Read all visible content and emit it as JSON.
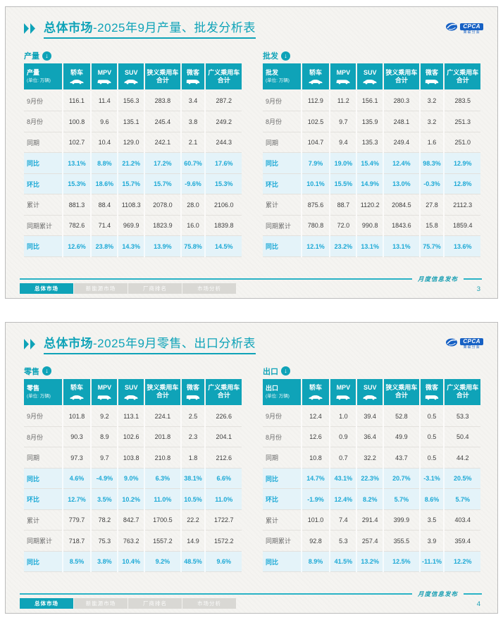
{
  "colors": {
    "teal": "#0fa3b8",
    "percent_text": "#1ca9d6",
    "percent_row_bg": "#e4f3f9",
    "slide_bg": "#f5f4f1",
    "logo_blue": "#1761c4",
    "tab_inactive_bg": "#d9d8d4"
  },
  "logo": {
    "text": "CPCA",
    "subtext": "乘联分会"
  },
  "footer": {
    "note": "月度信息发布",
    "tabs": [
      {
        "label": "总体市场",
        "active": true
      },
      {
        "label": "新能源市场",
        "active": false
      },
      {
        "label": "厂商排名",
        "active": false
      },
      {
        "label": "市场分析",
        "active": false
      }
    ]
  },
  "unit_label": "(单位: 万辆)",
  "columns": [
    {
      "label": "轿车",
      "icon": "sedan-icon"
    },
    {
      "label": "MPV",
      "icon": "mpv-icon"
    },
    {
      "label": "SUV",
      "icon": "suv-icon"
    },
    {
      "label": "狭义乘用车",
      "label2": "合计"
    },
    {
      "label": "微客",
      "icon": "microvan-icon"
    },
    {
      "label": "广义乘用车",
      "label2": "合计"
    }
  ],
  "slides": [
    {
      "title_primary": "总体市场",
      "title_secondary": "-2025年9月产量、批发分析表",
      "page_number": "3",
      "tables": [
        {
          "section": "产量",
          "rows": [
            {
              "label": "9月份",
              "type": "value",
              "values": [
                "116.1",
                "11.4",
                "156.3",
                "283.8",
                "3.4",
                "287.2"
              ]
            },
            {
              "label": "8月份",
              "type": "value",
              "values": [
                "100.8",
                "9.6",
                "135.1",
                "245.4",
                "3.8",
                "249.2"
              ]
            },
            {
              "label": "同期",
              "type": "value",
              "values": [
                "102.7",
                "10.4",
                "129.0",
                "242.1",
                "2.1",
                "244.3"
              ]
            },
            {
              "label": "同比",
              "type": "percent",
              "values": [
                "13.1%",
                "8.8%",
                "21.2%",
                "17.2%",
                "60.7%",
                "17.6%"
              ]
            },
            {
              "label": "环比",
              "type": "percent",
              "values": [
                "15.3%",
                "18.6%",
                "15.7%",
                "15.7%",
                "-9.6%",
                "15.3%"
              ]
            },
            {
              "label": "累计",
              "type": "value",
              "values": [
                "881.3",
                "88.4",
                "1108.3",
                "2078.0",
                "28.0",
                "2106.0"
              ]
            },
            {
              "label": "同期累计",
              "type": "value",
              "values": [
                "782.6",
                "71.4",
                "969.9",
                "1823.9",
                "16.0",
                "1839.8"
              ]
            },
            {
              "label": "同比",
              "type": "percent",
              "values": [
                "12.6%",
                "23.8%",
                "14.3%",
                "13.9%",
                "75.8%",
                "14.5%"
              ]
            }
          ]
        },
        {
          "section": "批发",
          "rows": [
            {
              "label": "9月份",
              "type": "value",
              "values": [
                "112.9",
                "11.2",
                "156.1",
                "280.3",
                "3.2",
                "283.5"
              ]
            },
            {
              "label": "8月份",
              "type": "value",
              "values": [
                "102.5",
                "9.7",
                "135.9",
                "248.1",
                "3.2",
                "251.3"
              ]
            },
            {
              "label": "同期",
              "type": "value",
              "values": [
                "104.7",
                "9.4",
                "135.3",
                "249.4",
                "1.6",
                "251.0"
              ]
            },
            {
              "label": "同比",
              "type": "percent",
              "values": [
                "7.9%",
                "19.0%",
                "15.4%",
                "12.4%",
                "98.3%",
                "12.9%"
              ]
            },
            {
              "label": "环比",
              "type": "percent",
              "values": [
                "10.1%",
                "15.5%",
                "14.9%",
                "13.0%",
                "-0.3%",
                "12.8%"
              ]
            },
            {
              "label": "累计",
              "type": "value",
              "values": [
                "875.6",
                "88.7",
                "1120.2",
                "2084.5",
                "27.8",
                "2112.3"
              ]
            },
            {
              "label": "同期累计",
              "type": "value",
              "values": [
                "780.8",
                "72.0",
                "990.8",
                "1843.6",
                "15.8",
                "1859.4"
              ]
            },
            {
              "label": "同比",
              "type": "percent",
              "values": [
                "12.1%",
                "23.2%",
                "13.1%",
                "13.1%",
                "75.7%",
                "13.6%"
              ]
            }
          ]
        }
      ]
    },
    {
      "title_primary": "总体市场",
      "title_secondary": "-2025年9月零售、出口分析表",
      "page_number": "4",
      "tables": [
        {
          "section": "零售",
          "rows": [
            {
              "label": "9月份",
              "type": "value",
              "values": [
                "101.8",
                "9.2",
                "113.1",
                "224.1",
                "2.5",
                "226.6"
              ]
            },
            {
              "label": "8月份",
              "type": "value",
              "values": [
                "90.3",
                "8.9",
                "102.6",
                "201.8",
                "2.3",
                "204.1"
              ]
            },
            {
              "label": "同期",
              "type": "value",
              "values": [
                "97.3",
                "9.7",
                "103.8",
                "210.8",
                "1.8",
                "212.6"
              ]
            },
            {
              "label": "同比",
              "type": "percent",
              "values": [
                "4.6%",
                "-4.9%",
                "9.0%",
                "6.3%",
                "38.1%",
                "6.6%"
              ]
            },
            {
              "label": "环比",
              "type": "percent",
              "values": [
                "12.7%",
                "3.5%",
                "10.2%",
                "11.0%",
                "10.5%",
                "11.0%"
              ]
            },
            {
              "label": "累计",
              "type": "value",
              "values": [
                "779.7",
                "78.2",
                "842.7",
                "1700.5",
                "22.2",
                "1722.7"
              ]
            },
            {
              "label": "同期累计",
              "type": "value",
              "values": [
                "718.7",
                "75.3",
                "763.2",
                "1557.2",
                "14.9",
                "1572.2"
              ]
            },
            {
              "label": "同比",
              "type": "percent",
              "values": [
                "8.5%",
                "3.8%",
                "10.4%",
                "9.2%",
                "48.5%",
                "9.6%"
              ]
            }
          ]
        },
        {
          "section": "出口",
          "rows": [
            {
              "label": "9月份",
              "type": "value",
              "values": [
                "12.4",
                "1.0",
                "39.4",
                "52.8",
                "0.5",
                "53.3"
              ]
            },
            {
              "label": "8月份",
              "type": "value",
              "values": [
                "12.6",
                "0.9",
                "36.4",
                "49.9",
                "0.5",
                "50.4"
              ]
            },
            {
              "label": "同期",
              "type": "value",
              "values": [
                "10.8",
                "0.7",
                "32.2",
                "43.7",
                "0.5",
                "44.2"
              ]
            },
            {
              "label": "同比",
              "type": "percent",
              "values": [
                "14.7%",
                "43.1%",
                "22.3%",
                "20.7%",
                "-3.1%",
                "20.5%"
              ]
            },
            {
              "label": "环比",
              "type": "percent",
              "values": [
                "-1.9%",
                "12.4%",
                "8.2%",
                "5.7%",
                "8.6%",
                "5.7%"
              ]
            },
            {
              "label": "累计",
              "type": "value",
              "values": [
                "101.0",
                "7.4",
                "291.4",
                "399.9",
                "3.5",
                "403.4"
              ]
            },
            {
              "label": "同期累计",
              "type": "value",
              "values": [
                "92.8",
                "5.3",
                "257.4",
                "355.5",
                "3.9",
                "359.4"
              ]
            },
            {
              "label": "同比",
              "type": "percent",
              "values": [
                "8.9%",
                "41.5%",
                "13.2%",
                "12.5%",
                "-11.1%",
                "12.2%"
              ]
            }
          ]
        }
      ]
    }
  ]
}
